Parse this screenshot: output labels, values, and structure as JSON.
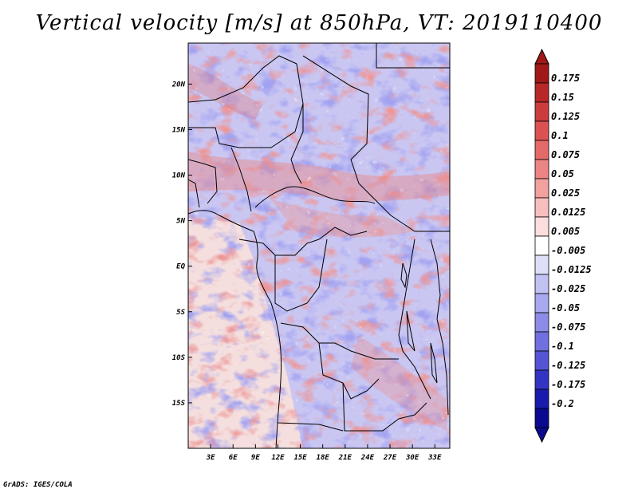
{
  "title": "Vertical velocity [m/s] at 850hPa, VT: 2019110400",
  "credit": "GrADS: IGES/COLA",
  "map": {
    "variable": "Vertical velocity",
    "units": "m/s",
    "level": "850hPa",
    "valid_time": "2019110400",
    "lon_range": [
      0,
      35
    ],
    "lat_range": [
      -20,
      24.5
    ],
    "lon_ticks": [
      "3E",
      "6E",
      "9E",
      "12E",
      "15E",
      "18E",
      "21E",
      "24E",
      "27E",
      "30E",
      "33E"
    ],
    "lat_ticks": [
      "20N",
      "15N",
      "10N",
      "5N",
      "EQ",
      "5S",
      "10S",
      "15S"
    ],
    "coastline_color": "#000000"
  },
  "colorbar": {
    "labels": [
      "0.175",
      "0.15",
      "0.125",
      "0.1",
      "0.075",
      "0.05",
      "0.025",
      "0.0125",
      "0.005",
      "-0.005",
      "-0.0125",
      "-0.025",
      "-0.05",
      "-0.075",
      "-0.1",
      "-0.125",
      "-0.175",
      "-0.2"
    ],
    "colors": [
      "#a01818",
      "#b82828",
      "#cc3c3c",
      "#dc5252",
      "#e46a6a",
      "#ec8484",
      "#f2a0a0",
      "#f8bebe",
      "#fcdede",
      "#ffffff",
      "#dedef8",
      "#c2c2f2",
      "#a8a8ee",
      "#8c8ce8",
      "#7070e0",
      "#5454d4",
      "#3434c4",
      "#1a1aac",
      "#0a0a90"
    ],
    "top_arrow_color": "#a01818",
    "bottom_arrow_color": "#0a0a90"
  }
}
